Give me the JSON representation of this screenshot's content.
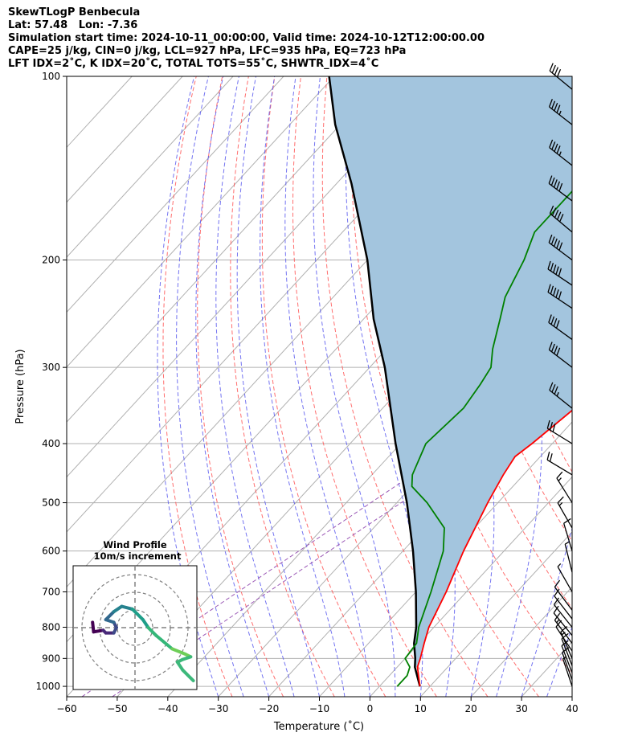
{
  "header": {
    "lines": [
      "SkewTLogP Benbecula",
      "Lat: 57.48   Lon: -7.36",
      "Simulation start time: 2024-10-11_00:00:00, Valid time: 2024-10-12T12:00:00.00",
      "CAPE=25 j/kg, CIN=0 j/kg, LCL=927 hPa, LFC=935 hPa, EQ=723 hPa",
      "LFT IDX=2˚C, K IDX=20˚C, TOTAL TOTS=55˚C, SHWTR_IDX=4˚C"
    ]
  },
  "chart_data": {
    "type": "skewt",
    "xlabel": "Temperature (˚C)",
    "ylabel": "Pressure (hPa)",
    "xlim": [
      -60,
      40
    ],
    "ylim": [
      1040,
      100
    ],
    "x_ticks": [
      -60,
      -50,
      -40,
      -30,
      -20,
      -10,
      0,
      10,
      20,
      30,
      40
    ],
    "y_ticks": [
      1000,
      900,
      800,
      700,
      600,
      500,
      400,
      300,
      200,
      100
    ],
    "log_y": true,
    "grid": true,
    "temperature": {
      "color": "#ff0000",
      "points": [
        [
          1000,
          8
        ],
        [
          930,
          4
        ],
        [
          900,
          3
        ],
        [
          850,
          1
        ],
        [
          800,
          -1
        ],
        [
          700,
          -4
        ],
        [
          600,
          -8
        ],
        [
          500,
          -12
        ],
        [
          450,
          -14
        ],
        [
          420,
          -15
        ],
        [
          400,
          -14
        ],
        [
          350,
          -12
        ],
        [
          300,
          -10
        ],
        [
          250,
          -9
        ],
        [
          200,
          -9
        ],
        [
          170,
          -10
        ],
        [
          150,
          -12
        ],
        [
          130,
          -13
        ],
        [
          115,
          -14
        ],
        [
          107,
          -13
        ],
        [
          100,
          -12
        ]
      ]
    },
    "dewpoint": {
      "color": "#008000",
      "points": [
        [
          1000,
          3.5
        ],
        [
          960,
          3.5
        ],
        [
          930,
          2.5
        ],
        [
          900,
          0
        ],
        [
          850,
          -0.5
        ],
        [
          800,
          -3
        ],
        [
          700,
          -7
        ],
        [
          600,
          -12
        ],
        [
          550,
          -16
        ],
        [
          500,
          -24
        ],
        [
          470,
          -30
        ],
        [
          450,
          -32
        ],
        [
          400,
          -35
        ],
        [
          350,
          -34
        ],
        [
          320,
          -35
        ],
        [
          300,
          -36
        ],
        [
          280,
          -39
        ],
        [
          250,
          -43
        ],
        [
          230,
          -46
        ],
        [
          200,
          -49
        ],
        [
          180,
          -52
        ],
        [
          150,
          -52
        ],
        [
          130,
          -53
        ],
        [
          115,
          -54
        ],
        [
          100,
          -55
        ]
      ]
    },
    "parcel": {
      "color": "#000000",
      "points": [
        [
          1000,
          8
        ],
        [
          930,
          3.5
        ],
        [
          900,
          2
        ],
        [
          850,
          -1
        ],
        [
          800,
          -3.5
        ],
        [
          700,
          -10
        ],
        [
          600,
          -18
        ],
        [
          500,
          -28
        ],
        [
          400,
          -41
        ],
        [
          300,
          -57
        ],
        [
          250,
          -68
        ],
        [
          200,
          -80
        ],
        [
          150,
          -97
        ],
        [
          120,
          -111
        ],
        [
          100,
          -121
        ]
      ]
    },
    "cape_fill_color": "#a3c5de",
    "wind_barbs": [
      {
        "p": 1000,
        "u": -1.5,
        "v": 4.5
      },
      {
        "p": 975,
        "u": -2,
        "v": 5.5
      },
      {
        "p": 950,
        "u": -2.5,
        "v": 6.5
      },
      {
        "p": 925,
        "u": -2.5,
        "v": 6.5
      },
      {
        "p": 900,
        "u": -3,
        "v": 7
      },
      {
        "p": 875,
        "u": -4,
        "v": 6
      },
      {
        "p": 850,
        "u": -4.5,
        "v": 6
      },
      {
        "p": 825,
        "u": -4.5,
        "v": 5.5
      },
      {
        "p": 800,
        "u": -4,
        "v": 5
      },
      {
        "p": 775,
        "u": -3.5,
        "v": 4.5
      },
      {
        "p": 750,
        "u": -3,
        "v": 4
      },
      {
        "p": 700,
        "u": -2,
        "v": 3.5
      },
      {
        "p": 650,
        "u": -1,
        "v": 4
      },
      {
        "p": 600,
        "u": -1.5,
        "v": 5
      },
      {
        "p": 550,
        "u": -4,
        "v": 7
      },
      {
        "p": 500,
        "u": -5,
        "v": 8
      },
      {
        "p": 450,
        "u": -10,
        "v": 6
      },
      {
        "p": 400,
        "u": -13,
        "v": 8
      },
      {
        "p": 350,
        "u": -15,
        "v": 12
      },
      {
        "p": 300,
        "u": -17,
        "v": 13
      },
      {
        "p": 270,
        "u": -18,
        "v": 13
      },
      {
        "p": 240,
        "u": -21,
        "v": 14
      },
      {
        "p": 220,
        "u": -21,
        "v": 14
      },
      {
        "p": 200,
        "u": -20,
        "v": 15
      },
      {
        "p": 180,
        "u": -19,
        "v": 16
      },
      {
        "p": 160,
        "u": -20,
        "v": 15
      },
      {
        "p": 140,
        "u": -19,
        "v": 15
      },
      {
        "p": 120,
        "u": -18,
        "v": 14
      },
      {
        "p": 105,
        "u": -17,
        "v": 14
      }
    ],
    "inset": {
      "title": "Wind Profile",
      "subtitle": "10m/s increment",
      "rings": [
        10,
        20,
        30
      ],
      "max_speed": 35,
      "hodograph": [
        [
          -8,
          1
        ],
        [
          -7.8,
          -0.8
        ],
        [
          -6,
          -0.5
        ],
        [
          -5.5,
          -1
        ],
        [
          -4,
          -1
        ],
        [
          -3.5,
          0
        ],
        [
          -4,
          1
        ],
        [
          -5.5,
          1.5
        ],
        [
          -4,
          3
        ],
        [
          -2.5,
          4
        ],
        [
          -0.5,
          3.5
        ],
        [
          1.5,
          1.5
        ],
        [
          2.5,
          0
        ],
        [
          4,
          -1.5
        ],
        [
          7,
          -4
        ],
        [
          9.5,
          -5
        ],
        [
          10.5,
          -5.5
        ],
        [
          9,
          -6
        ],
        [
          8,
          -6.5
        ],
        [
          9,
          -8
        ],
        [
          11,
          -10
        ]
      ]
    }
  }
}
